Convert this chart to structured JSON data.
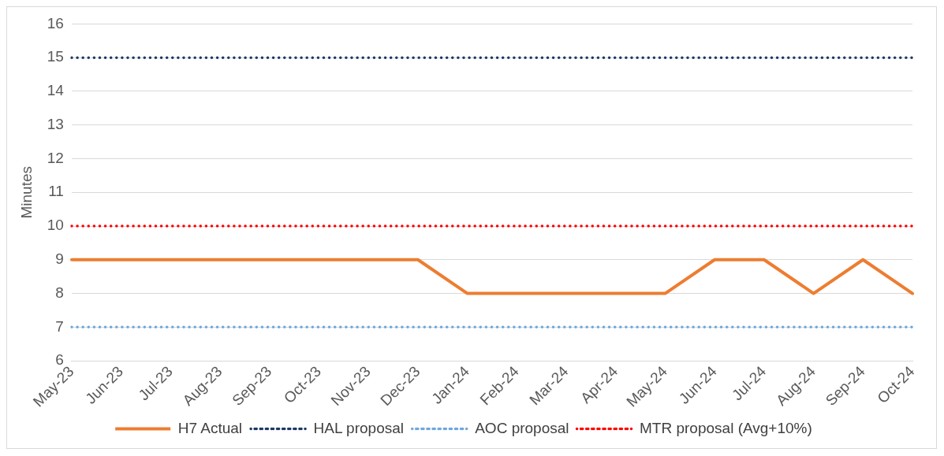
{
  "chart_data": {
    "type": "line",
    "ylabel": "Minutes",
    "categories": [
      "May-23",
      "Jun-23",
      "Jul-23",
      "Aug-23",
      "Sep-23",
      "Oct-23",
      "Nov-23",
      "Dec-23",
      "Jan-24",
      "Feb-24",
      "Mar-24",
      "Apr-24",
      "May-24",
      "Jun-24",
      "Jul-24",
      "Aug-24",
      "Sep-24",
      "Oct-24"
    ],
    "series": [
      {
        "name": "H7 Actual",
        "color": "#ed7d31",
        "line_style": "solid",
        "values": [
          9,
          9,
          9,
          9,
          9,
          9,
          9,
          9,
          8,
          8,
          8,
          8,
          8,
          9,
          9,
          8,
          9,
          8
        ]
      },
      {
        "name": "HAL proposal",
        "color": "#1f3864",
        "line_style": "dotted",
        "values": [
          15,
          15,
          15,
          15,
          15,
          15,
          15,
          15,
          15,
          15,
          15,
          15,
          15,
          15,
          15,
          15,
          15,
          15
        ]
      },
      {
        "name": "AOC proposal",
        "color": "#6fa8dc",
        "line_style": "dotted",
        "values": [
          7,
          7,
          7,
          7,
          7,
          7,
          7,
          7,
          7,
          7,
          7,
          7,
          7,
          7,
          7,
          7,
          7,
          7
        ]
      },
      {
        "name": "MTR proposal (Avg+10%)",
        "color": "#ff0000",
        "line_style": "dotted",
        "values": [
          10,
          10,
          10,
          10,
          10,
          10,
          10,
          10,
          10,
          10,
          10,
          10,
          10,
          10,
          10,
          10,
          10,
          10
        ]
      }
    ],
    "ylim": [
      6,
      16
    ],
    "yticks": [
      6,
      7,
      8,
      9,
      10,
      11,
      12,
      13,
      14,
      15,
      16
    ],
    "grid": "y",
    "legend": "bottom",
    "marker": "none"
  }
}
